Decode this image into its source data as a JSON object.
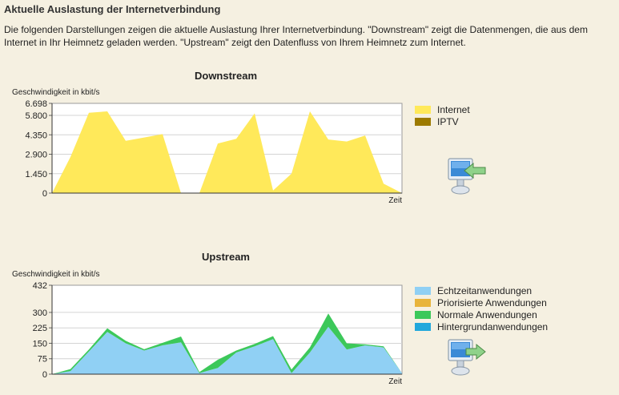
{
  "page": {
    "title": "Aktuelle Auslastung der Internetverbindung",
    "intro": "Die folgenden Darstellungen zeigen die aktuelle Auslastung Ihrer Internetverbindung. \"Downstream\" zeigt die Datenmengen, die aus dem Internet in Ihr Heimnetz geladen werden. \"Upstream\" zeigt den Datenfluss von Ihrem Heimnetz zum Internet."
  },
  "icons": {
    "downstream": "computer-download-arrow-icon",
    "upstream": "computer-upload-arrow-icon"
  },
  "chart_data": [
    {
      "type": "area",
      "title": "Downstream",
      "ylabel": "Geschwindigkeit in kbit/s",
      "xlabel": "Zeit",
      "ylim": [
        0,
        6698
      ],
      "yticks": [
        "0",
        "1.450",
        "2.900",
        "4.350",
        "5.800",
        "6.698"
      ],
      "ytick_values": [
        0,
        1450,
        2900,
        4350,
        5800,
        6698
      ],
      "grid": true,
      "legend_position": "right",
      "x": [
        0,
        1,
        2,
        3,
        4,
        5,
        6,
        7,
        8,
        9,
        10,
        11,
        12,
        13,
        14,
        15,
        16,
        17,
        18,
        19
      ],
      "series": [
        {
          "name": "Internet",
          "color": "#ffe95a",
          "values": [
            0,
            2700,
            6000,
            6100,
            3900,
            4150,
            4400,
            0,
            0,
            3700,
            4050,
            5950,
            200,
            1450,
            6100,
            4000,
            3850,
            4300,
            700,
            0
          ]
        },
        {
          "name": "IPTV",
          "color": "#9c7a00",
          "values": [
            0,
            0,
            0,
            0,
            0,
            0,
            0,
            0,
            0,
            0,
            0,
            0,
            0,
            0,
            0,
            0,
            0,
            0,
            0,
            0
          ]
        }
      ]
    },
    {
      "type": "area",
      "title": "Upstream",
      "ylabel": "Geschwindigkeit in kbit/s",
      "xlabel": "Zeit",
      "ylim": [
        0,
        432
      ],
      "yticks": [
        "0",
        "75",
        "150",
        "225",
        "300",
        "432"
      ],
      "ytick_values": [
        0,
        75,
        150,
        225,
        300,
        432
      ],
      "grid": true,
      "legend_position": "right",
      "x": [
        0,
        1,
        2,
        3,
        4,
        5,
        6,
        7,
        8,
        9,
        10,
        11,
        12,
        13,
        14,
        15,
        16,
        17,
        18,
        19
      ],
      "series": [
        {
          "name": "Echtzeitanwendungen",
          "color": "#90d0f4",
          "values": [
            0,
            15,
            110,
            205,
            150,
            115,
            140,
            155,
            5,
            30,
            105,
            135,
            170,
            5,
            105,
            230,
            120,
            140,
            130,
            5
          ]
        },
        {
          "name": "Priorisierte Anwendungen",
          "color": "#e8b43c",
          "values": [
            0,
            0,
            0,
            0,
            0,
            0,
            0,
            0,
            0,
            0,
            0,
            0,
            0,
            0,
            0,
            0,
            0,
            0,
            0,
            0
          ]
        },
        {
          "name": "Normale Anwendungen",
          "color": "#3cc85a",
          "values": [
            0,
            10,
            10,
            18,
            12,
            6,
            12,
            28,
            5,
            40,
            10,
            12,
            15,
            18,
            25,
            65,
            30,
            5,
            5,
            0
          ]
        },
        {
          "name": "Hintergrundanwendungen",
          "color": "#22a8dc",
          "values": [
            0,
            0,
            0,
            0,
            0,
            0,
            0,
            0,
            0,
            0,
            0,
            0,
            0,
            0,
            0,
            0,
            0,
            0,
            0,
            0
          ]
        }
      ]
    }
  ]
}
